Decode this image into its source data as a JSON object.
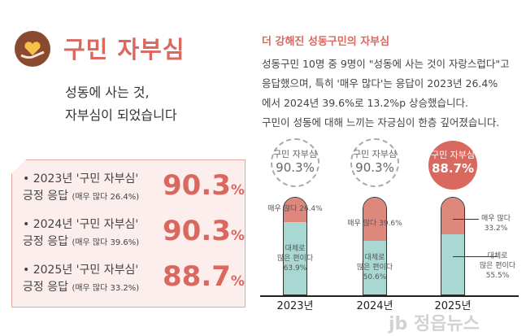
{
  "header": {
    "title": "구민 자부심",
    "subtitle_lines": [
      "성동에 사는 것,",
      "자부심이 되었습니다"
    ],
    "icon": "heart-hand-icon"
  },
  "summary": [
    {
      "line1": "• 2023년 '구민 자부심'",
      "line2": "긍정 응답",
      "detail": "(매우 많다 26.4%)",
      "value": "90.3",
      "unit": "%"
    },
    {
      "line1": "• 2024년 '구민 자부심'",
      "line2": "긍정 응답",
      "detail": "(매우 많다 39.6%)",
      "value": "90.3",
      "unit": "%"
    },
    {
      "line1": "• 2025년 '구민 자부심'",
      "line2": "긍정 응답",
      "detail": "(매우 많다 33.2%)",
      "value": "88.7",
      "unit": "%"
    }
  ],
  "right": {
    "heading": "더 강해진 성동구민의 자부심",
    "paragraph": [
      "성동구민 10명 중 9명이 \"성동에 사는 것이 자랑스럽다\"고",
      "응답했으며, 특히 '매우 많다'는 응답이 2023년 26.4%",
      "에서 2024년 39.6%로 13.2%p 상승했습니다.",
      "구민이 성동에 대해 느끼는 자긍심이 한층 깊어졌습니다."
    ]
  },
  "chart_data": {
    "type": "bar",
    "stacked": true,
    "categories": [
      "2023년",
      "2024년",
      "2025년"
    ],
    "totals_label": "구민 자부심",
    "totals": [
      "90.3%",
      "90.3%",
      "88.7%"
    ],
    "series": [
      {
        "name": "매우 많다",
        "values": [
          26.4,
          39.6,
          33.2
        ],
        "labels": [
          "매우 많다 26.4%",
          "매우 많다 39.6%",
          "매우 많다 33.2%"
        ],
        "color": "#de877d"
      },
      {
        "name": "대체로 많은 편이다",
        "values": [
          63.9,
          50.6,
          55.5
        ],
        "labels": [
          "63.9%",
          "50.6%",
          "55.5%"
        ],
        "color": "#a9d8d2"
      }
    ],
    "bottom_label_lines": [
      "대체로",
      "많은 편이다"
    ],
    "highlight": "2025년",
    "highlight_color": "#d9685f"
  },
  "watermark": "jb 정읍뉴스"
}
